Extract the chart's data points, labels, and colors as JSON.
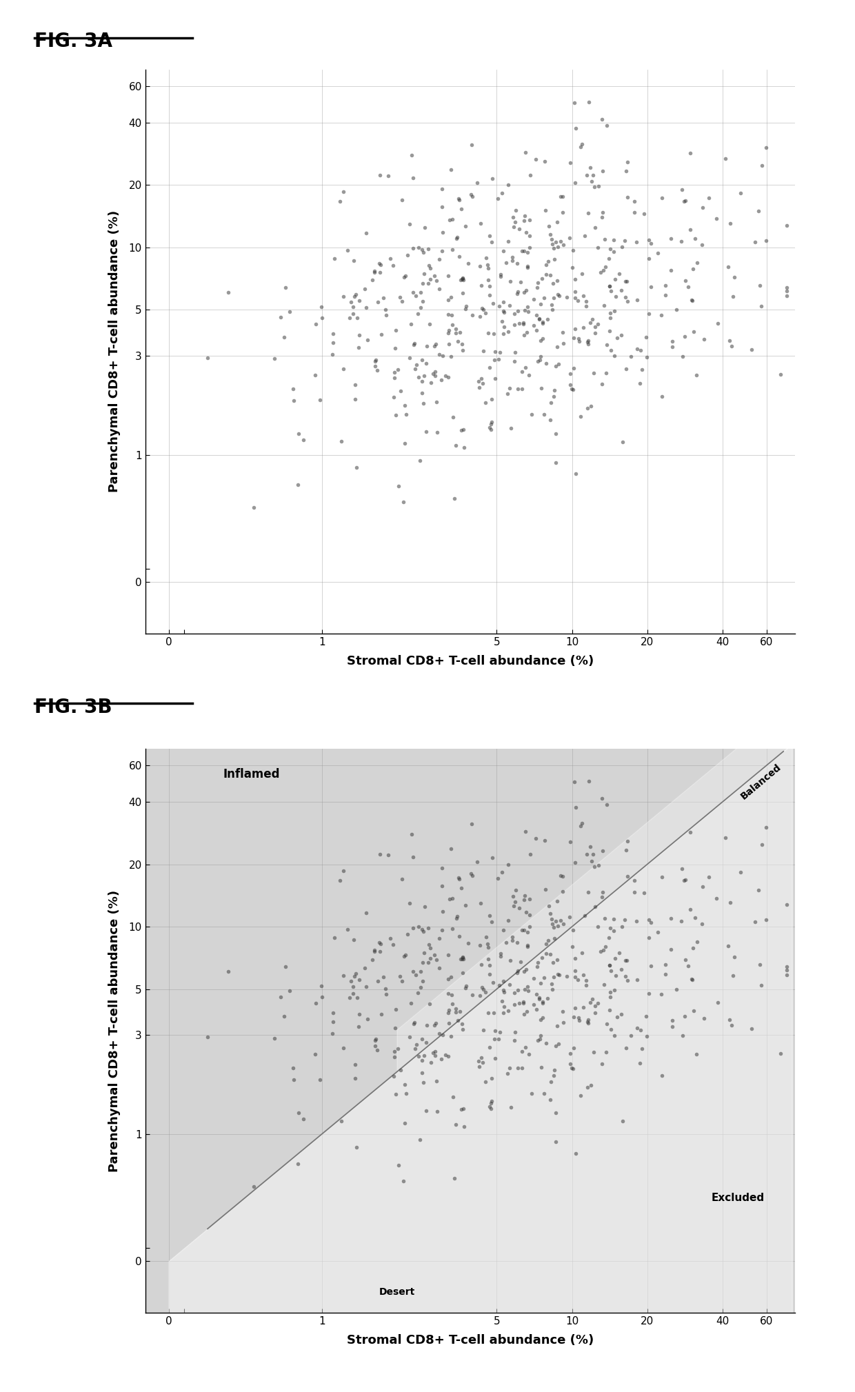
{
  "fig_label_a": "FIG. 3A",
  "fig_label_b": "FIG. 3B",
  "xlabel": "Stromal CD8+ T-cell abundance (%)",
  "ylabel": "Parenchymal CD8+ T-cell abundance (%)",
  "xticks": [
    0,
    1,
    5,
    10,
    20,
    40,
    60
  ],
  "yticks": [
    0,
    1,
    3,
    5,
    10,
    20,
    40,
    60
  ],
  "scatter_color": "#333333",
  "scatter_alpha": 0.5,
  "scatter_size": 16,
  "background_color": "#ffffff",
  "plot_bg_b": "#d4d4d4",
  "grid_color": "#999999",
  "inflamed_label": "Inflamed",
  "balanced_label": "Balanced",
  "excluded_label": "Excluded",
  "desert_label": "Desert",
  "n_points": 520,
  "seed": 42,
  "linthresh": 0.5,
  "linscale": 0.28,
  "xlim": [
    -0.15,
    78
  ],
  "ylim": [
    -0.4,
    72
  ],
  "fig_label_fontsize": 20,
  "axis_label_fontsize": 13,
  "tick_fontsize": 11
}
